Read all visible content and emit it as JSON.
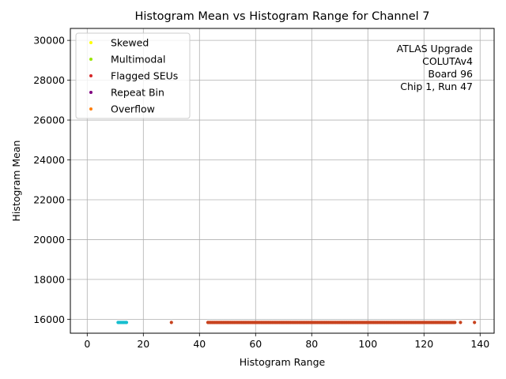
{
  "chart_data": {
    "type": "scatter",
    "title": "Histogram Mean vs Histogram Range for Channel 7",
    "xlabel": "Histogram Range",
    "ylabel": "Histogram Mean",
    "xlim": [
      -6,
      145
    ],
    "ylim": [
      15300,
      30600
    ],
    "xticks": [
      0,
      20,
      40,
      60,
      80,
      100,
      120,
      140
    ],
    "yticks": [
      16000,
      18000,
      20000,
      22000,
      24000,
      26000,
      28000,
      30000
    ],
    "grid": true,
    "legend_position": "top-left",
    "legend": [
      {
        "name": "Skewed",
        "color": "#ffff00"
      },
      {
        "name": "Multimodal",
        "color": "#99e600"
      },
      {
        "name": "Flagged SEUs",
        "color": "#d62728"
      },
      {
        "name": "Repeat Bin",
        "color": "#800080"
      },
      {
        "name": "Overflow",
        "color": "#ff7f0e"
      }
    ],
    "annotation": [
      "ATLAS Upgrade",
      "COLUTAv4",
      "Board 96",
      "Chip 1, Run 47"
    ],
    "series": [
      {
        "color": "#17becf",
        "x": [
          11,
          11.5,
          12,
          12.5,
          13,
          13.5,
          14
        ],
        "y": [
          15840,
          15840,
          15840,
          15840,
          15840,
          15840,
          15840
        ]
      },
      {
        "color": "#c8431f",
        "x_start": 43,
        "x_end": 131,
        "x_step": 0.5,
        "extra_x": [
          30,
          133,
          138
        ],
        "y": 15840
      }
    ]
  }
}
